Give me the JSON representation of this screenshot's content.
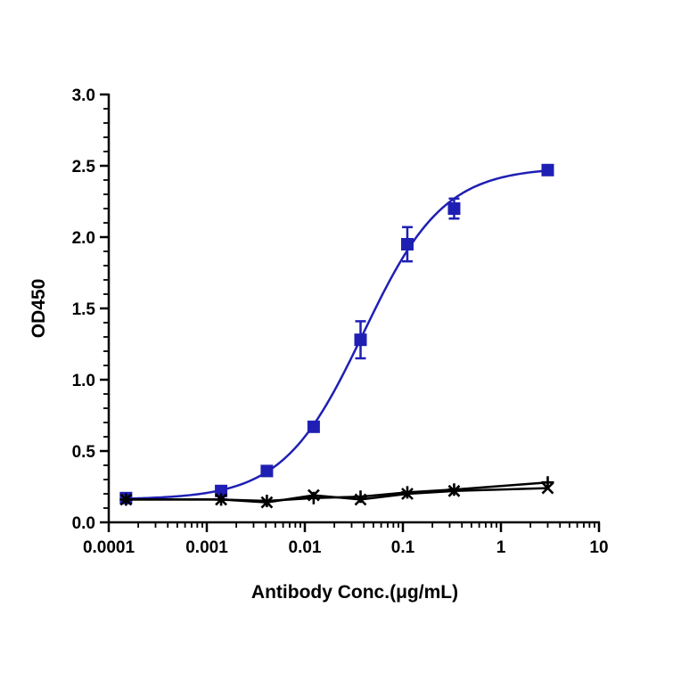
{
  "chart_data": {
    "type": "scatter",
    "xlabel": "Antibody Conc.(μg/mL)",
    "ylabel": "OD450",
    "x_scale": "log",
    "xlim": [
      0.0001,
      10
    ],
    "ylim": [
      0,
      3.0
    ],
    "x_ticks": [
      0.0001,
      0.001,
      0.01,
      0.1,
      1,
      10
    ],
    "x_tick_labels": [
      "0.0001",
      "0.001",
      "0.01",
      "0.1",
      "1",
      "10"
    ],
    "y_ticks": [
      0,
      0.5,
      1.0,
      1.5,
      2.0,
      2.5,
      3.0
    ],
    "y_tick_labels": [
      "0.0",
      "0.5",
      "1.0",
      "1.5",
      "2.0",
      "2.5",
      "3.0"
    ],
    "grid": false,
    "series": [
      {
        "marker": "square",
        "color": "#1f1fb4",
        "fit": "4PL",
        "x": [
          0.00015,
          0.0014,
          0.0041,
          0.0123,
          0.037,
          0.111,
          0.333,
          3.0
        ],
        "y": [
          0.17,
          0.22,
          0.36,
          0.67,
          1.28,
          1.95,
          2.2,
          2.47
        ],
        "y_err": [
          0.02,
          0.02,
          0.02,
          0.03,
          0.13,
          0.12,
          0.07,
          0.03
        ]
      },
      {
        "marker": "cross",
        "color": "#000000",
        "fit": "line",
        "x": [
          0.00015,
          0.0014,
          0.0041,
          0.0123,
          0.037,
          0.111,
          0.333,
          3.0
        ],
        "y": [
          0.16,
          0.16,
          0.14,
          0.19,
          0.16,
          0.2,
          0.22,
          0.24
        ]
      },
      {
        "marker": "plus",
        "color": "#000000",
        "fit": "line",
        "x": [
          0.00015,
          0.0014,
          0.0041,
          0.0123,
          0.037,
          0.111,
          0.333,
          3.0
        ],
        "y": [
          0.16,
          0.16,
          0.15,
          0.17,
          0.18,
          0.21,
          0.23,
          0.28
        ]
      }
    ]
  }
}
